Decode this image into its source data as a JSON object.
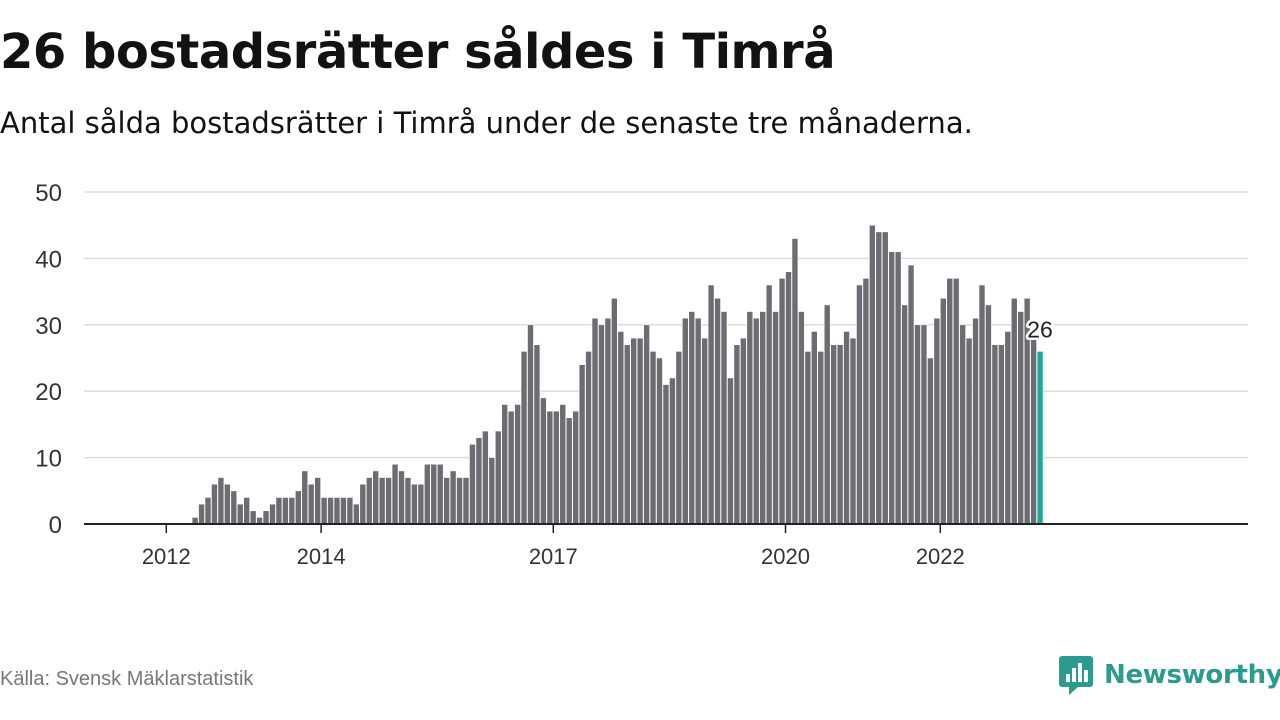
{
  "header": {
    "title": "26 bostadsrätter såldes i Timrå",
    "subtitle": "Antal sålda bostadsrätter i Timrå under de senaste tre månaderna."
  },
  "footer": {
    "source": "Källa: Svensk Mäklarstatistik",
    "brand": "Newsworthy",
    "brand_color": "#2b9b90"
  },
  "chart_data": {
    "type": "bar",
    "title": "",
    "xlabel": "",
    "ylabel": "",
    "ylim": [
      0,
      50
    ],
    "yticks": [
      0,
      10,
      20,
      30,
      40,
      50
    ],
    "xticks": [
      "2012",
      "2014",
      "2017",
      "2020",
      "2022"
    ],
    "grid": true,
    "bar_color": "#6d6c73",
    "highlight_color": "#1ea898",
    "highlight_label": "26",
    "start": "2011-09",
    "values": [
      0,
      0,
      0,
      0,
      0,
      0,
      0,
      0,
      1,
      3,
      4,
      6,
      7,
      6,
      5,
      3,
      4,
      2,
      1,
      2,
      3,
      4,
      4,
      4,
      5,
      8,
      6,
      7,
      4,
      4,
      4,
      4,
      4,
      3,
      6,
      7,
      8,
      7,
      7,
      9,
      8,
      7,
      6,
      6,
      9,
      9,
      9,
      7,
      8,
      7,
      7,
      12,
      13,
      14,
      10,
      14,
      18,
      17,
      18,
      26,
      30,
      27,
      19,
      17,
      17,
      18,
      16,
      17,
      24,
      26,
      31,
      30,
      31,
      34,
      29,
      27,
      28,
      28,
      30,
      26,
      25,
      21,
      22,
      26,
      31,
      32,
      31,
      28,
      36,
      34,
      32,
      22,
      27,
      28,
      32,
      31,
      32,
      36,
      32,
      37,
      38,
      43,
      32,
      26,
      29,
      26,
      33,
      27,
      27,
      29,
      28,
      36,
      37,
      45,
      44,
      44,
      41,
      41,
      33,
      39,
      30,
      30,
      25,
      31,
      34,
      37,
      37,
      30,
      28,
      31,
      36,
      33,
      27,
      27,
      29,
      34,
      32,
      34,
      28,
      26
    ]
  }
}
